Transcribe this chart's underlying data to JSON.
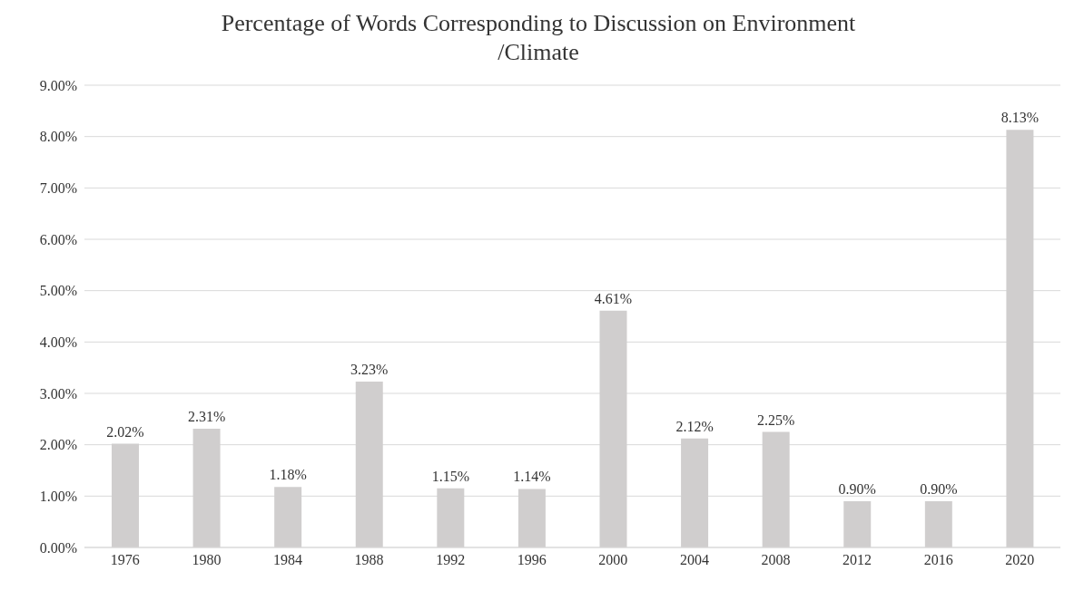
{
  "chart_data": {
    "type": "bar",
    "title": "Percentage of Words Corresponding to Discussion on Environment /Climate",
    "categories": [
      "1976",
      "1980",
      "1984",
      "1988",
      "1992",
      "1996",
      "2000",
      "2004",
      "2008",
      "2012",
      "2016",
      "2020"
    ],
    "values": [
      2.02,
      2.31,
      1.18,
      3.23,
      1.15,
      1.14,
      4.61,
      2.12,
      2.25,
      0.9,
      0.9,
      8.13
    ],
    "value_labels": [
      "2.02%",
      "2.31%",
      "1.18%",
      "3.23%",
      "1.15%",
      "1.14%",
      "4.61%",
      "2.12%",
      "2.25%",
      "0.90%",
      "0.90%",
      "8.13%"
    ],
    "color": "#d0cece",
    "ylim": [
      0,
      9
    ],
    "yticks": [
      {
        "value": 0,
        "label": "0.00%"
      },
      {
        "value": 1,
        "label": "1.00%"
      },
      {
        "value": 2,
        "label": "2.00%"
      },
      {
        "value": 3,
        "label": "3.00%"
      },
      {
        "value": 4,
        "label": "4.00%"
      },
      {
        "value": 5,
        "label": "5.00%"
      },
      {
        "value": 6,
        "label": "6.00%"
      },
      {
        "value": 7,
        "label": "7.00%"
      },
      {
        "value": 8,
        "label": "8.00%"
      },
      {
        "value": 9,
        "label": "9.00%"
      }
    ],
    "grid": "y",
    "legend": false
  }
}
